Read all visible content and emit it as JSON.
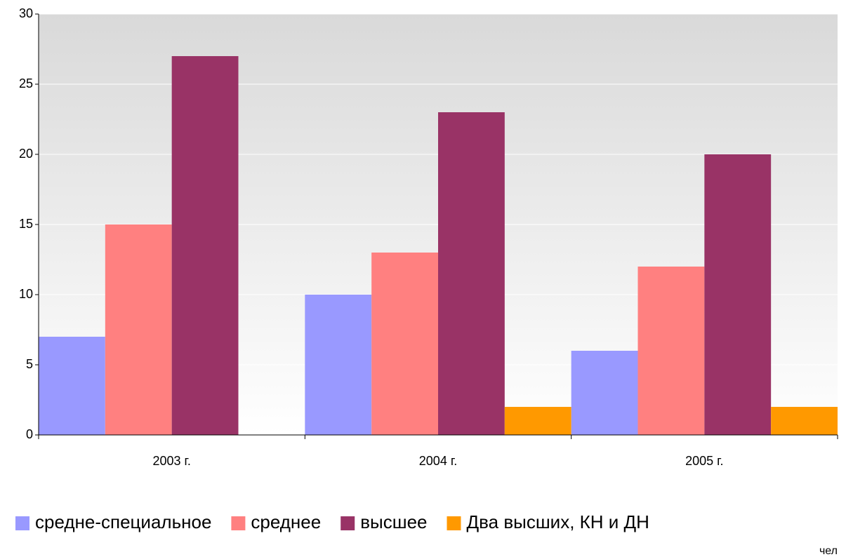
{
  "chart_data": {
    "type": "bar",
    "categories": [
      "2003 г.",
      "2004 г.",
      "2005 г."
    ],
    "series": [
      {
        "name": "средне-специальное",
        "color": "#9999ff",
        "values": [
          7,
          10,
          6
        ]
      },
      {
        "name": "среднее",
        "color": "#ff8080",
        "values": [
          15,
          13,
          12
        ]
      },
      {
        "name": "высшее",
        "color": "#993366",
        "values": [
          27,
          23,
          20
        ]
      },
      {
        "name": "Два высших, КН и ДН",
        "color": "#ff9900",
        "values": [
          0,
          2,
          2
        ]
      }
    ],
    "ylim": [
      0,
      30
    ],
    "yticks": [
      0,
      5,
      10,
      15,
      20,
      25,
      30
    ],
    "grid": true,
    "legend": "bottom",
    "unit_label": "чел"
  }
}
